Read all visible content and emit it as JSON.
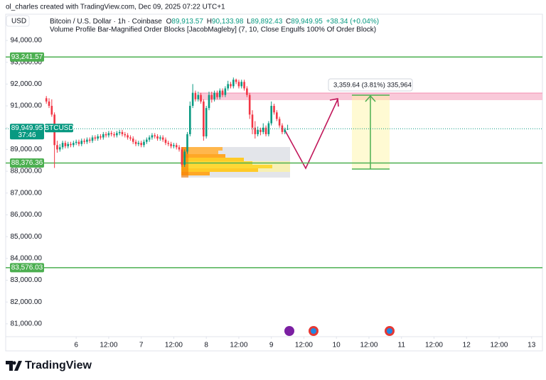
{
  "chart_data": {
    "type": "candlestick",
    "attribution": "ol_charles created with TradingView.com, Dec 09, 2025 07:22 UTC+1",
    "currency": "USD",
    "title": "Bitcoin / U.S. Dollar · 1h · Coinbase",
    "ohlc_header": [
      {
        "label": "O",
        "value": "89,913.57"
      },
      {
        "label": "H",
        "value": "90,133.98"
      },
      {
        "label": "L",
        "value": "89,892.43"
      },
      {
        "label": "C",
        "value": "89,949.95"
      }
    ],
    "change": "+38.34 (+0.04%)",
    "indicator": "Volume Profile Bar-Magnified Order Blocks [JacobMagleby] (7, 10, Close Engulfs 100% Of Order Block)",
    "up_color": "#089981",
    "down_color": "#f23645",
    "xlim": [
      -26,
      172
    ],
    "xticks": [
      {
        "value": 0,
        "label": "6"
      },
      {
        "value": 12,
        "label": "12:00"
      },
      {
        "value": 24,
        "label": "7"
      },
      {
        "value": 36,
        "label": "12:00"
      },
      {
        "value": 48,
        "label": "8"
      },
      {
        "value": 60,
        "label": "12:00"
      },
      {
        "value": 72,
        "label": "9"
      },
      {
        "value": 84,
        "label": "12:00"
      },
      {
        "value": 96,
        "label": "10"
      },
      {
        "value": 108,
        "label": "12:00"
      },
      {
        "value": 120,
        "label": "11"
      },
      {
        "value": 132,
        "label": "12:00"
      },
      {
        "value": 144,
        "label": "12"
      },
      {
        "value": 156,
        "label": "12:00"
      },
      {
        "value": 168,
        "label": "13"
      }
    ],
    "ylim": [
      80410,
      95140
    ],
    "yticks": [
      {
        "value": 81000,
        "label": "81,000.00"
      },
      {
        "value": 82000,
        "label": "82,000.00"
      },
      {
        "value": 83000,
        "label": "83,000.00"
      },
      {
        "value": 84000,
        "label": "84,000.00"
      },
      {
        "value": 85000,
        "label": "85,000.00"
      },
      {
        "value": 86000,
        "label": "86,000.00"
      },
      {
        "value": 87000,
        "label": "87,000.00"
      },
      {
        "value": 88000,
        "label": "88,000.00"
      },
      {
        "value": 89000,
        "label": "89,000.00"
      },
      {
        "value": 90000,
        "label": "90,000.00"
      },
      {
        "value": 91000,
        "label": "91,000.00"
      },
      {
        "value": 92000,
        "label": "92,000.00"
      },
      {
        "value": 93000,
        "label": "93,000.00"
      },
      {
        "value": 94000,
        "label": "94,000.00"
      }
    ],
    "grid": false,
    "x": [
      -11,
      -10,
      -9,
      -8,
      -7,
      -6,
      -5,
      -4,
      -3,
      -2,
      -1,
      0,
      1,
      2,
      3,
      4,
      5,
      6,
      7,
      8,
      9,
      10,
      11,
      12,
      13,
      14,
      15,
      16,
      17,
      18,
      19,
      20,
      21,
      22,
      23,
      24,
      25,
      26,
      27,
      28,
      29,
      30,
      31,
      32,
      33,
      34,
      35,
      36,
      37,
      38,
      39,
      40,
      41,
      42,
      43,
      44,
      45,
      46,
      47,
      48,
      49,
      50,
      51,
      52,
      53,
      54,
      55,
      56,
      57,
      58,
      59,
      60,
      61,
      62,
      63,
      64,
      65,
      66,
      67,
      68,
      69,
      70,
      71,
      72,
      73,
      74,
      75,
      76,
      77,
      78
    ],
    "open": [
      91350,
      91200,
      91000,
      90600,
      89200,
      89000,
      89100,
      89300,
      89150,
      89250,
      89200,
      89300,
      89350,
      89250,
      89400,
      89350,
      89450,
      89400,
      89550,
      89500,
      89600,
      89550,
      89700,
      89650,
      89750,
      89700,
      89650,
      89750,
      89800,
      89700,
      89650,
      89550,
      89500,
      89350,
      89250,
      89300,
      89200,
      89350,
      89450,
      89550,
      89650,
      89600,
      89500,
      89550,
      89450,
      89300,
      89250,
      89150,
      89200,
      89100,
      89000,
      88300,
      88900,
      89700,
      91000,
      91600,
      91300,
      91500,
      91200,
      89600,
      90900,
      91500,
      91300,
      91600,
      91400,
      91700,
      91500,
      91800,
      92000,
      91900,
      92200,
      92100,
      91900,
      92100,
      91800,
      91500,
      90600,
      90000,
      89700,
      89900,
      89800,
      90000,
      89700,
      90200,
      91000,
      90700,
      90400,
      90100,
      89800,
      89913.57
    ],
    "high": [
      91450,
      91350,
      91300,
      90700,
      89400,
      89250,
      89400,
      89400,
      89350,
      89350,
      89400,
      89450,
      89450,
      89500,
      89500,
      89550,
      89550,
      89650,
      89650,
      89700,
      89700,
      89800,
      89800,
      89850,
      89850,
      89800,
      89850,
      89900,
      89900,
      89800,
      89750,
      89650,
      89600,
      89450,
      89400,
      89400,
      89450,
      89550,
      89650,
      89750,
      89750,
      89700,
      89650,
      89650,
      89550,
      89400,
      89350,
      89300,
      89300,
      89200,
      89100,
      89000,
      89800,
      91200,
      92000,
      91700,
      91650,
      91600,
      91300,
      91000,
      91650,
      91650,
      91700,
      91700,
      91800,
      91800,
      91900,
      92150,
      92100,
      92300,
      92250,
      92200,
      92200,
      92200,
      91900,
      91600,
      90800,
      90300,
      90050,
      90000,
      90200,
      90100,
      90300,
      91200,
      91100,
      90800,
      90500,
      90200,
      90000,
      90133.98
    ],
    "low": [
      91100,
      90900,
      90500,
      88150,
      88850,
      88900,
      89000,
      89050,
      89050,
      89100,
      89100,
      89200,
      89150,
      89150,
      89250,
      89250,
      89300,
      89300,
      89400,
      89400,
      89450,
      89450,
      89550,
      89550,
      89600,
      89550,
      89550,
      89650,
      89600,
      89550,
      89450,
      89400,
      89250,
      89150,
      89150,
      89100,
      89100,
      89250,
      89350,
      89450,
      89500,
      89400,
      89400,
      89350,
      89200,
      89150,
      89050,
      89050,
      89000,
      88900,
      88200,
      88200,
      88800,
      89600,
      90900,
      91200,
      91200,
      91100,
      89400,
      89500,
      90800,
      91150,
      91200,
      91300,
      91300,
      91400,
      91400,
      91700,
      91800,
      91800,
      92000,
      91800,
      91800,
      91700,
      91400,
      90400,
      89700,
      89500,
      89600,
      89650,
      89700,
      89600,
      89600,
      90100,
      90600,
      90300,
      90000,
      89700,
      89700,
      89892.43
    ],
    "close": [
      91200,
      91000,
      90600,
      89200,
      89000,
      89100,
      89300,
      89150,
      89250,
      89200,
      89300,
      89350,
      89250,
      89400,
      89350,
      89450,
      89400,
      89550,
      89500,
      89600,
      89550,
      89700,
      89650,
      89750,
      89700,
      89650,
      89750,
      89800,
      89700,
      89650,
      89550,
      89500,
      89350,
      89250,
      89300,
      89200,
      89350,
      89450,
      89550,
      89650,
      89600,
      89500,
      89550,
      89450,
      89300,
      89250,
      89150,
      89200,
      89100,
      89000,
      88300,
      88900,
      89700,
      91000,
      91600,
      91300,
      91500,
      91200,
      89600,
      90900,
      91500,
      91300,
      91600,
      91400,
      91700,
      91500,
      91800,
      92000,
      91900,
      92200,
      92100,
      91900,
      92100,
      91800,
      91500,
      90600,
      90000,
      89700,
      89900,
      89800,
      90000,
      89700,
      90200,
      91000,
      90700,
      90400,
      90100,
      89800,
      89900,
      89949.95
    ],
    "levels": [
      {
        "value": 93241.57,
        "label": "93,241.57",
        "color": "#4caf50"
      },
      {
        "value": 88376.36,
        "label": "88,376.36",
        "color": "#4caf50"
      },
      {
        "value": 83576.03,
        "label": "83,576.03",
        "color": "#4caf50"
      }
    ],
    "last_price": {
      "value": 89949.95,
      "label": "89,949.95"
    },
    "symbol": "BTCUSD",
    "countdown": "37:46",
    "measure_label": "3,359.64 (3.81%) 335,964",
    "brand": "TradingView"
  }
}
